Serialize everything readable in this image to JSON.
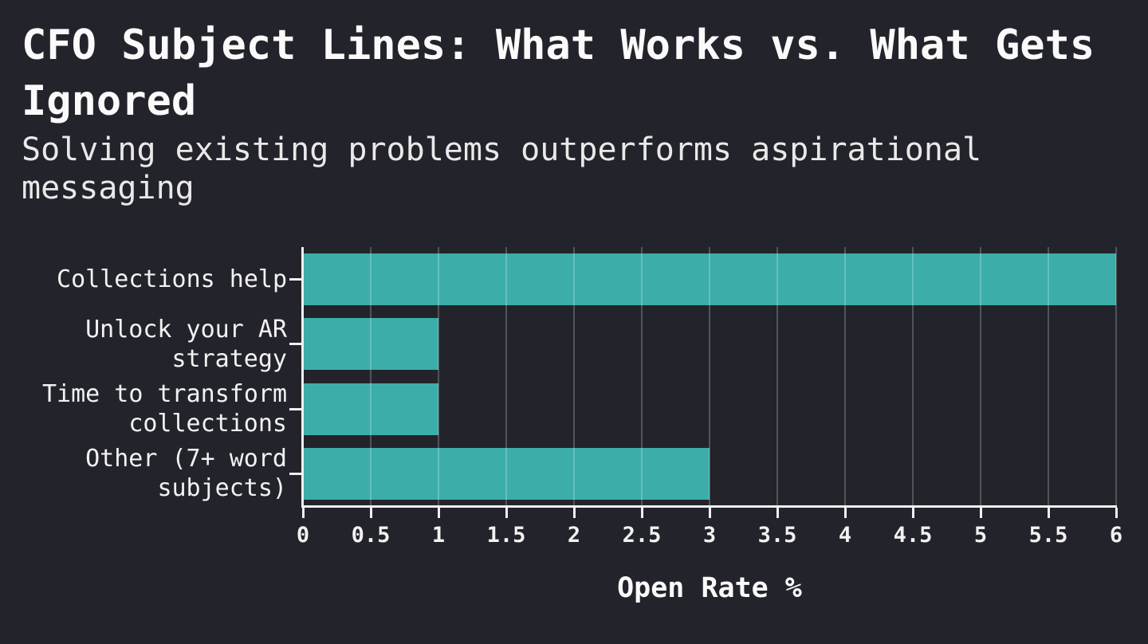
{
  "header": {
    "title_display": "CFO Subject Lines: What Works vs. What Gets\nIgnored",
    "subtitle_display": "Solving existing problems outperforms aspirational\nmessaging"
  },
  "chart": {
    "xlabel_display": "Open Rate %",
    "ylabel_display": [
      "Collections help",
      "Unlock your AR\nstrategy",
      "Time to transform\ncollections",
      "Other (7+ word\nsubjects)"
    ],
    "xtick_labels": [
      "0",
      "0.5",
      "1",
      "1.5",
      "2",
      "2.5",
      "3",
      "3.5",
      "4",
      "4.5",
      "5",
      "5.5",
      "6"
    ]
  },
  "chart_data": {
    "type": "bar",
    "orientation": "horizontal",
    "title": "CFO Subject Lines: What Works vs. What Gets Ignored",
    "subtitle": "Solving existing problems outperforms aspirational messaging",
    "xlabel": "Open Rate %",
    "ylabel": "",
    "categories": [
      "Collections help",
      "Unlock your AR strategy",
      "Time to transform collections",
      "Other (7+ word subjects)"
    ],
    "values": [
      6,
      1,
      1,
      3
    ],
    "xlim": [
      0,
      6
    ],
    "xticks": [
      0,
      0.5,
      1,
      1.5,
      2,
      2.5,
      3,
      3.5,
      4,
      4.5,
      5,
      5.5,
      6
    ],
    "grid": true,
    "legend": false,
    "colors": {
      "bar": "#3CADA8",
      "background": "#23242B",
      "text": "#F2F2F2",
      "grid_line": "rgba(255,255,255,0.22)",
      "axis": "#F0F0F0"
    }
  }
}
